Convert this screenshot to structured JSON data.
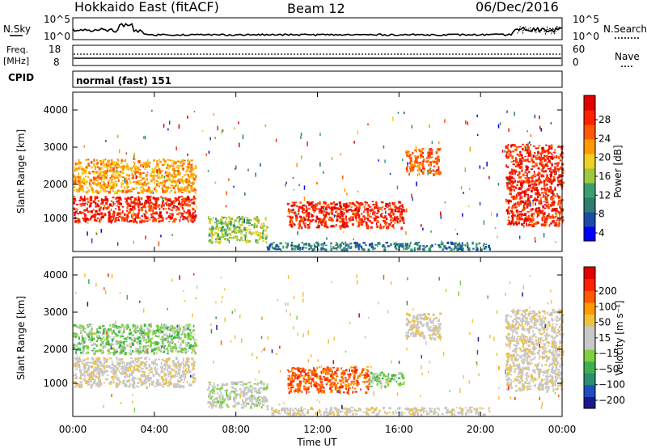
{
  "header": {
    "title": "Hokkaido East (fitACF)",
    "beam": "Beam 12",
    "date": "06/Dec/2016"
  },
  "noise_panel": {
    "left_label": "N.Sky",
    "left_ticks": [
      "10^5",
      "10^0"
    ],
    "right_label": "N.Search",
    "right_ticks": [
      "10^5",
      "10^0"
    ]
  },
  "freq_panel": {
    "label_line1": "Freq.",
    "label_line2": "[MHz]",
    "left_ticks": [
      "18",
      "8"
    ],
    "right_label": "Nave",
    "right_ticks": [
      "60",
      "0"
    ]
  },
  "cpid_panel": {
    "label": "CPID",
    "value": "normal (fast) 151"
  },
  "power_panel": {
    "ylabel": "Slant Range [km]",
    "yticks": [
      "4000",
      "3000",
      "2000",
      "1000"
    ],
    "colorbar_label": "Power [dB]",
    "colorbar_ticks": [
      "28",
      "24",
      "20",
      "16",
      "12",
      "8",
      "4"
    ],
    "colors": [
      "#0000ff",
      "#1c4ca8",
      "#2e7d6e",
      "#3aa070",
      "#9ec840",
      "#f0d020",
      "#ff9a00",
      "#ff5a00",
      "#ff2000",
      "#e00000"
    ]
  },
  "velocity_panel": {
    "ylabel": "Slant Range [km]",
    "yticks": [
      "4000",
      "3000",
      "2000",
      "1000"
    ],
    "colorbar_label": "Velocity [m s⁻¹]",
    "colorbar_ticks": [
      "200",
      "100",
      "50",
      "15",
      "−15",
      "−50",
      "−100",
      "−200"
    ],
    "colors": [
      "#1a1a8c",
      "#1f4fbf",
      "#2a8f6a",
      "#3fb050",
      "#7ed040",
      "#c8c8c8",
      "#c8c8c8",
      "#f0c040",
      "#ff9a00",
      "#ff5a00",
      "#ff2000",
      "#e00000"
    ]
  },
  "xaxis": {
    "label": "Time UT",
    "ticks": [
      "00:00",
      "04:00",
      "08:00",
      "12:00",
      "16:00",
      "20:00",
      "00:00"
    ]
  },
  "chart_data": [
    {
      "type": "heatmap",
      "name": "Power [dB]",
      "x_range_hours": [
        0,
        24
      ],
      "y_range_km": [
        180,
        4500
      ],
      "color_range": [
        0,
        30
      ],
      "regions": [
        {
          "t0": 0.0,
          "t1": 6.0,
          "r0": 1000,
          "r1": 1700,
          "value": 28
        },
        {
          "t0": 0.0,
          "t1": 6.0,
          "r0": 1800,
          "r1": 2700,
          "value": 20
        },
        {
          "t0": 6.6,
          "t1": 9.5,
          "r0": 450,
          "r1": 1150,
          "value": 12
        },
        {
          "t0": 10.5,
          "t1": 16.2,
          "r0": 850,
          "r1": 1550,
          "value": 26
        },
        {
          "t0": 9.5,
          "t1": 20.5,
          "r0": 250,
          "r1": 450,
          "value": 8
        },
        {
          "t0": 16.3,
          "t1": 18.0,
          "r0": 2300,
          "r1": 3000,
          "value": 22
        },
        {
          "t0": 21.2,
          "t1": 24.0,
          "r0": 900,
          "r1": 3100,
          "value": 27
        }
      ]
    },
    {
      "type": "heatmap",
      "name": "Velocity [m s-1]",
      "x_range_hours": [
        0,
        24
      ],
      "y_range_km": [
        180,
        4500
      ],
      "color_range": [
        -200,
        200
      ],
      "regions": [
        {
          "t0": 0.0,
          "t1": 6.0,
          "r0": 1000,
          "r1": 1800,
          "value": 0
        },
        {
          "t0": 0.0,
          "t1": 6.0,
          "r0": 1900,
          "r1": 2700,
          "value": -40
        },
        {
          "t0": 6.6,
          "t1": 9.5,
          "r0": 450,
          "r1": 1150,
          "value": -5
        },
        {
          "t0": 10.5,
          "t1": 14.5,
          "r0": 850,
          "r1": 1550,
          "value": 120
        },
        {
          "t0": 14.5,
          "t1": 16.2,
          "r0": 1000,
          "r1": 1400,
          "value": -40
        },
        {
          "t0": 9.5,
          "t1": 20.5,
          "r0": 250,
          "r1": 450,
          "value": 25
        },
        {
          "t0": 16.3,
          "t1": 18.0,
          "r0": 2300,
          "r1": 3000,
          "value": 0
        },
        {
          "t0": 21.2,
          "t1": 24.0,
          "r0": 900,
          "r1": 3100,
          "value": 10
        }
      ]
    }
  ]
}
